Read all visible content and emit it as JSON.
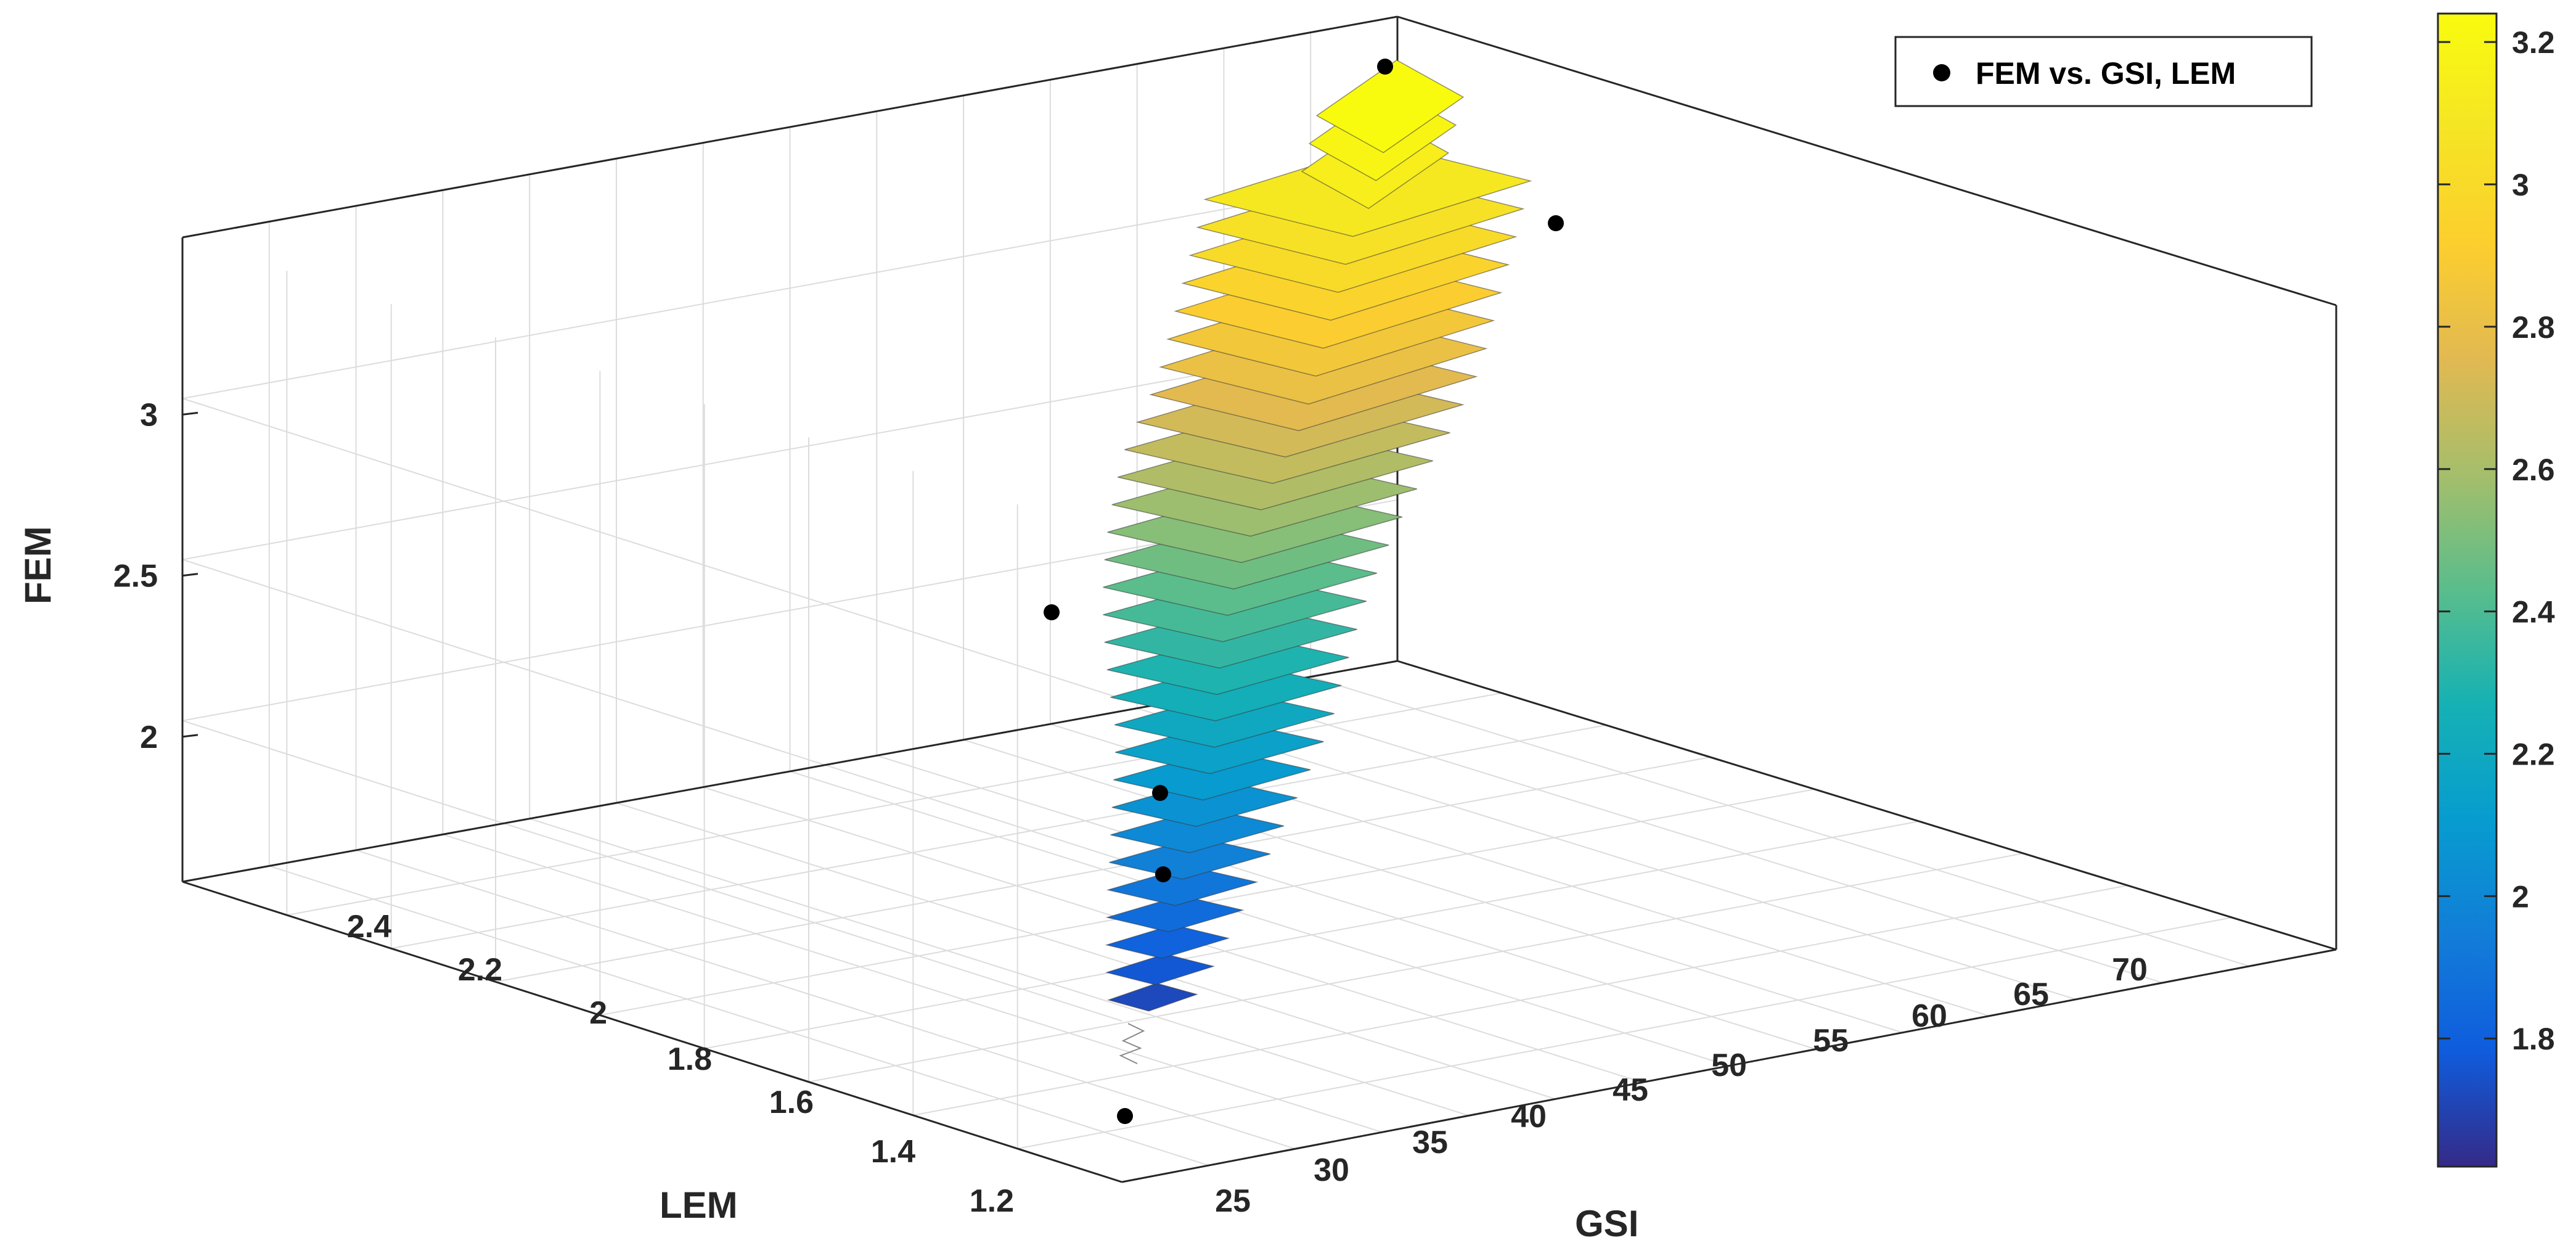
{
  "chart_data": {
    "type": "surface3d",
    "title": "",
    "xlabel": "GSI",
    "ylabel": "LEM",
    "zlabel": "FEM",
    "x_ticks": [
      "25",
      "30",
      "35",
      "40",
      "45",
      "50",
      "55",
      "60",
      "65",
      "70"
    ],
    "y_ticks": [
      "1.2",
      "1.4",
      "1.6",
      "1.8",
      "2",
      "2.2",
      "2.4"
    ],
    "z_ticks": [
      "2",
      "2.5",
      "3"
    ],
    "colorbar_ticks": [
      "1.8",
      "2",
      "2.2",
      "2.4",
      "2.6",
      "2.8",
      "3",
      "3.2"
    ],
    "colorbar_range": [
      1.62,
      3.24
    ],
    "colormap": "parula",
    "legend": {
      "label": "FEM vs. GSI, LEM",
      "placement": "top-right",
      "marker": "filled-circle",
      "marker_color": "#000000"
    },
    "points": [
      {
        "GSI": 65,
        "LEM": 2.35,
        "FEM": 3.35
      },
      {
        "GSI": 70,
        "LEM": 2.3,
        "FEM": 2.95
      },
      {
        "GSI": 30,
        "LEM": 1.5,
        "FEM": 2.42
      },
      {
        "GSI": 40,
        "LEM": 1.6,
        "FEM": 1.94
      },
      {
        "GSI": 38,
        "LEM": 1.55,
        "FEM": 1.76
      },
      {
        "GSI": 25,
        "LEM": 1.3,
        "FEM": 1.2
      }
    ],
    "surface": {
      "description_band_min": 1.72,
      "description_band_max": 3.24,
      "band_steps": 33
    },
    "grid": true
  }
}
